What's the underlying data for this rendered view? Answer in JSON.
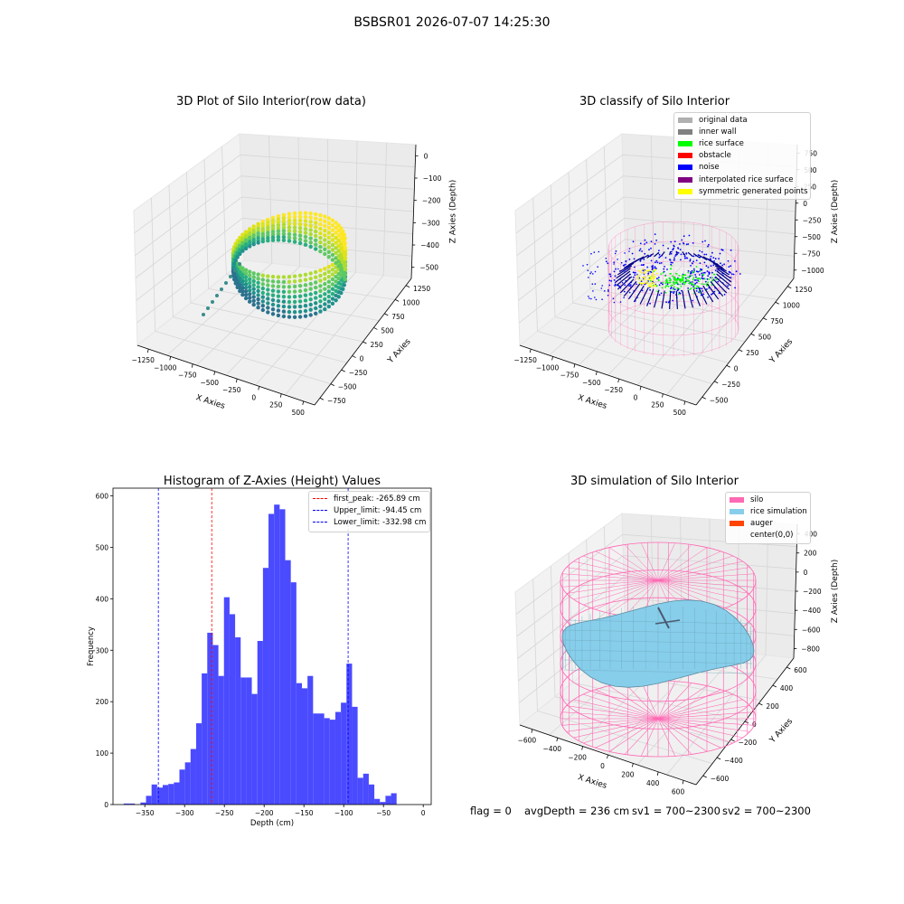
{
  "figure": {
    "suptitle": "BSBSR01 2026-07-07 14:25:30",
    "footer": {
      "flag": "flag = 0",
      "avg": "avgDepth = 236 cm",
      "sv1": "sv1 = 700~2300",
      "sv2": "sv2 = 700~2300"
    }
  },
  "chart_data": [
    {
      "type": "scatter",
      "title": "3D Plot of Silo Interior(row data)",
      "xlabel": "X Axies",
      "ylabel": "Y Axies",
      "zlabel": "Z Axies (Depth)",
      "xticks": [
        "−1250",
        "−1000",
        "−750",
        "−500",
        "−250",
        "0",
        "250",
        "500"
      ],
      "yticks": [
        "−750",
        "−500",
        "−250",
        "0",
        "250",
        "500",
        "750",
        "1000",
        "1250"
      ],
      "zticks": [
        "0",
        "−100",
        "−200",
        "−300",
        "−400",
        "−500"
      ],
      "colormap": "viridis"
    },
    {
      "type": "scatter",
      "title": "3D classify of Silo Interior",
      "xlabel": "X Axies",
      "ylabel": "Y Axies",
      "zlabel": "Z Axies (Depth)",
      "xticks": [
        "−1250",
        "−1000",
        "−750",
        "−500",
        "−250",
        "0",
        "250",
        "500"
      ],
      "yticks": [
        "−500",
        "−250",
        "0",
        "250",
        "500",
        "750",
        "1000",
        "1250"
      ],
      "zticks": [
        "750",
        "500",
        "250",
        "0",
        "−250",
        "−500",
        "−750",
        "−1000"
      ],
      "legend": [
        {
          "label": "original data",
          "color": "#b0b0b0"
        },
        {
          "label": "inner wall",
          "color": "#808080"
        },
        {
          "label": "rice surface",
          "color": "#00ff00"
        },
        {
          "label": "obstacle",
          "color": "#ff0000"
        },
        {
          "label": "noise",
          "color": "#0000ff"
        },
        {
          "label": "interpolated rice surface",
          "color": "#800080"
        },
        {
          "label": "symmetric generated points",
          "color": "#ffff00"
        }
      ]
    },
    {
      "type": "bar",
      "title": "Histogram of Z-Axies (Height) Values",
      "xlabel": "Depth (cm)",
      "ylabel": "Frequency",
      "xlim": [
        -390,
        10
      ],
      "ylim": [
        0,
        615
      ],
      "xticks": [
        -350,
        -300,
        -250,
        -200,
        -150,
        -100,
        -50,
        0
      ],
      "yticks": [
        0,
        100,
        200,
        300,
        400,
        500,
        600
      ],
      "bar_color": "#4a4aff",
      "bin_width": 7.0,
      "bin_start": -376.5,
      "values": [
        2,
        2,
        0,
        4,
        17,
        39,
        33,
        38,
        40,
        43,
        68,
        82,
        108,
        158,
        255,
        334,
        310,
        250,
        403,
        370,
        325,
        247,
        247,
        215,
        318,
        460,
        565,
        583,
        574,
        475,
        432,
        236,
        226,
        250,
        177,
        177,
        168,
        165,
        180,
        198,
        274,
        190,
        52,
        60,
        39,
        11,
        5,
        17,
        22
      ],
      "vlines": [
        {
          "label": "first_peak: -265.89 cm",
          "x": -265.89,
          "color": "#ff0000"
        },
        {
          "label": "Upper_limit: -94.45 cm",
          "x": -94.45,
          "color": "#0000ff"
        },
        {
          "label": "Lower_limit: -332.98 cm",
          "x": -332.98,
          "color": "#0000ff"
        }
      ]
    },
    {
      "type": "scatter",
      "title": "3D simulation of Silo Interior",
      "xlabel": "X Axies",
      "ylabel": "Y Axies",
      "zlabel": "Z Axies (Depth)",
      "xticks": [
        "−600",
        "−400",
        "−200",
        "0",
        "200",
        "400",
        "600"
      ],
      "yticks": [
        "−600",
        "−400",
        "−200",
        "0",
        "200",
        "400",
        "600"
      ],
      "zticks": [
        "400",
        "200",
        "0",
        "−200",
        "−400",
        "−600",
        "−800"
      ],
      "legend": [
        {
          "label": "silo",
          "color": "#ff69b4"
        },
        {
          "label": "rice simulation",
          "color": "#87ceeb"
        },
        {
          "label": "auger",
          "color": "#ff4500"
        },
        {
          "label": "center(0,0)",
          "color": "#ffffff"
        }
      ]
    }
  ]
}
